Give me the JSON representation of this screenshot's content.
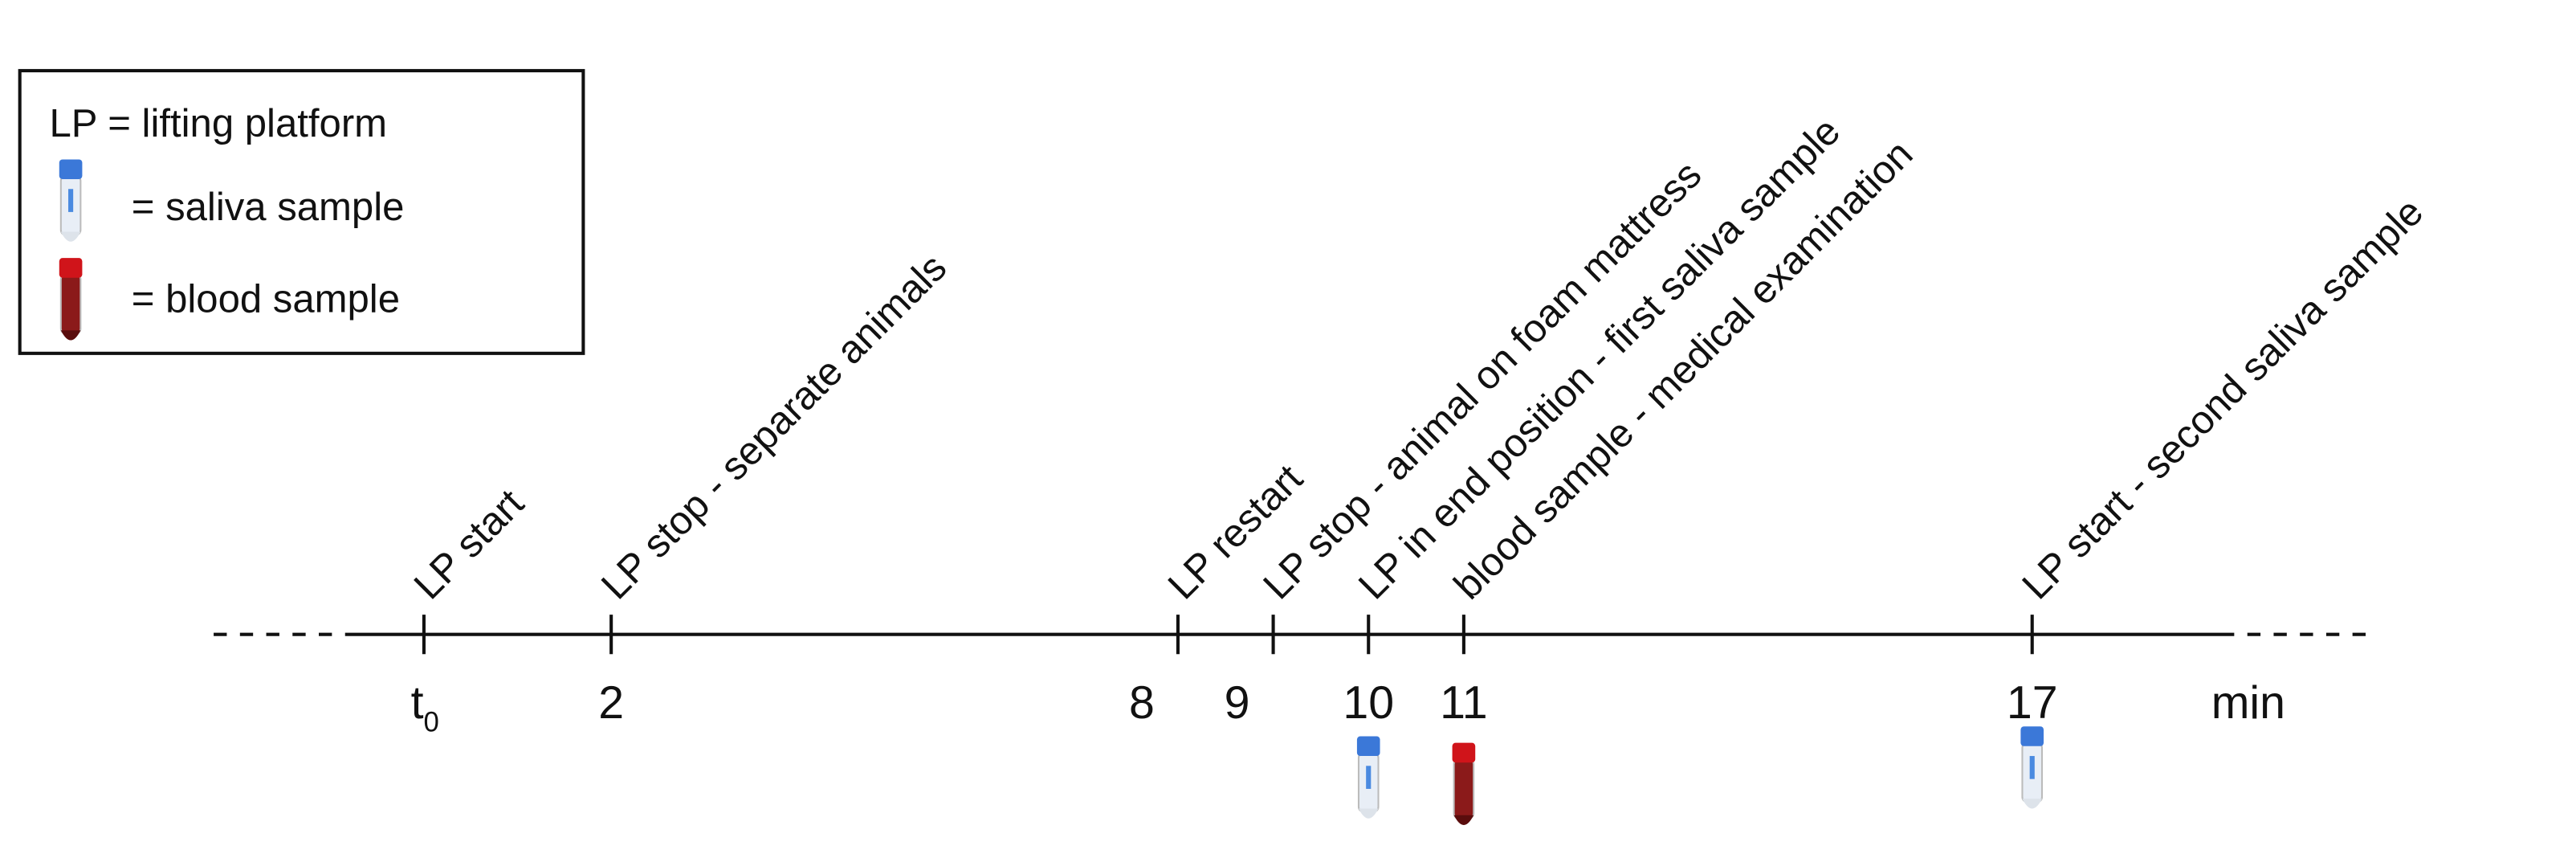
{
  "legend": {
    "items": [
      "LP = lifting platform",
      "= saliva sample",
      "= blood sample"
    ]
  },
  "timeline": {
    "unit": "min",
    "ticks": [
      {
        "base": "t",
        "sub": "0"
      },
      {
        "base": "2"
      },
      {
        "base": "8"
      },
      {
        "base": "9"
      },
      {
        "base": "10"
      },
      {
        "base": "11"
      },
      {
        "base": "17"
      }
    ],
    "events": [
      "LP start",
      "LP stop - separate animals",
      "LP restart",
      "LP stop - animal on foam mattress",
      "LP in end position - first saliva sample",
      "blood sample - medical examination",
      "LP start - second saliva sample"
    ]
  }
}
